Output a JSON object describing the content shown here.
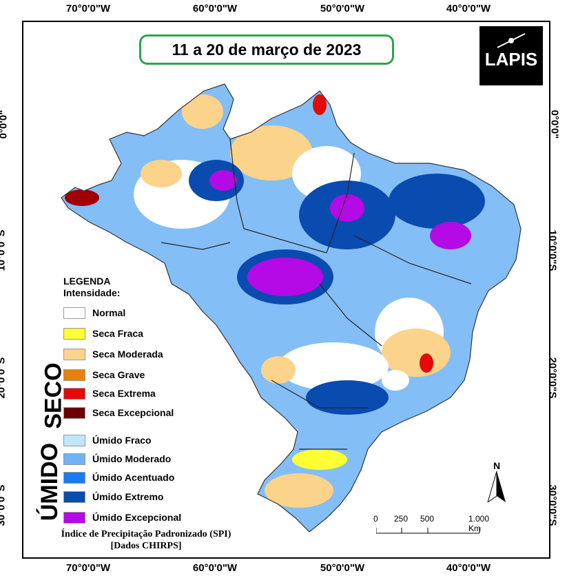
{
  "title": "11 a 20 de março de 2023",
  "logo_text": "LAPIS",
  "coords": {
    "top": [
      "70°0'0\"W",
      "60°0'0\"W",
      "50°0'0\"W",
      "40°0'0\"W"
    ],
    "bottom": [
      "70°0'0\"W",
      "60°0'0\"W",
      "50°0'0\"W",
      "40°0'0\"W"
    ],
    "left": [
      "0°0'0\"",
      "10°0'0\"S",
      "20°0'0\"S",
      "30°0'0\"S"
    ],
    "right": [
      "0°0'0\"",
      "10°0'0\"S",
      "20°0'0\"S",
      "30°0'0\"S"
    ]
  },
  "legend": {
    "title": "LEGENDA",
    "subtitle": "Intensidade:",
    "seco_label": "SECO",
    "umido_label": "ÚMIDO",
    "items": [
      {
        "label": "Normal",
        "color": "#ffffff"
      },
      {
        "label": "Seca Fraca",
        "color": "#ffff33"
      },
      {
        "label": "Seca Moderada",
        "color": "#fcd38a"
      },
      {
        "label": "Seca Grave",
        "color": "#e6820a"
      },
      {
        "label": "Seca Extrema",
        "color": "#e40a0a"
      },
      {
        "label": "Seca Excepcional",
        "color": "#6b0000"
      },
      {
        "label": "Úmido Fraco",
        "color": "#bfe6fb"
      },
      {
        "label": "Úmido Moderado",
        "color": "#6fb3f5"
      },
      {
        "label": "Úmido Acentuado",
        "color": "#1a7af0"
      },
      {
        "label": "Úmido Extremo",
        "color": "#0a4bb0"
      },
      {
        "label": "Úmido Excepcional",
        "color": "#b30ae6"
      }
    ]
  },
  "spi_line1": "Índice de Precipitação Padronizado (SPI)",
  "spi_line2": "[Dados CHIRPS]",
  "scale": {
    "labels": [
      "0",
      "250",
      "500",
      "1.000 Km"
    ]
  },
  "north_label": "N"
}
